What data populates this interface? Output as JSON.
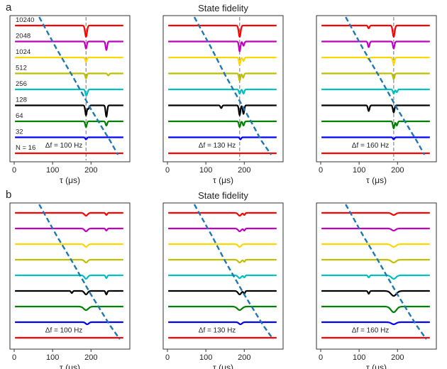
{
  "figure": {
    "panel_labels": [
      "a",
      "b"
    ],
    "row_titles": [
      "State fidelity",
      "State fidelity"
    ]
  },
  "chart_data": [
    {
      "type": "line",
      "panel": "a",
      "subplot": 1,
      "title": "",
      "annotation": "Δf = 100 Hz",
      "xlabel": "τ (μs)",
      "xlim": [
        0,
        290
      ],
      "xticks": [
        0,
        100,
        200
      ],
      "n_labels": [
        "10240",
        "2048",
        "1024",
        "512",
        "256",
        "128",
        "64",
        "32",
        "N = 16"
      ],
      "series": [
        {
          "name": "N=10240",
          "color": "#ff0000",
          "dips": [
            [
              187,
              16,
              2.5
            ]
          ]
        },
        {
          "name": "N=2048",
          "color": "#bf00bf",
          "dips": [
            [
              187,
              10,
              2
            ],
            [
              240,
              12,
              2
            ]
          ]
        },
        {
          "name": "N=1024",
          "color": "#ffd700",
          "dips": [
            [
              187,
              6,
              2
            ]
          ]
        },
        {
          "name": "N=512",
          "color": "#bfbf00",
          "dips": [
            [
              187,
              7,
              2
            ],
            [
              245,
              3,
              2
            ]
          ]
        },
        {
          "name": "N=256",
          "color": "#00bfbf",
          "dips": [
            [
              187,
              7,
              2
            ],
            [
              190,
              4,
              2
            ]
          ]
        },
        {
          "name": "N=128",
          "color": "#000000",
          "dips": [
            [
              187,
              14,
              2
            ],
            [
              240,
              16,
              2
            ],
            [
              193,
              5,
              2
            ]
          ]
        },
        {
          "name": "N=64",
          "color": "#008000",
          "dips": [
            [
              187,
              8,
              2
            ],
            [
              240,
              6,
              2
            ]
          ]
        },
        {
          "name": "N=32",
          "color": "#0000ff",
          "dips": [
            [
              187,
              3,
              2
            ]
          ]
        },
        {
          "name": "N=16",
          "color": "#ff0000",
          "dips": []
        }
      ],
      "vline_x": 187,
      "dashed_curve": {
        "color": "#1f77b4",
        "x": [
          65,
          110,
          150,
          200,
          250,
          270
        ],
        "y": [
          1.0,
          0.77,
          0.58,
          0.33,
          0.1,
          0.0
        ]
      }
    },
    {
      "type": "line",
      "panel": "a",
      "subplot": 2,
      "title": "State fidelity",
      "annotation": "Δf = 130 Hz",
      "xlabel": "τ (μs)",
      "xlim": [
        0,
        290
      ],
      "xticks": [
        0,
        100,
        200
      ],
      "series": [
        {
          "name": "N=10240",
          "color": "#ff0000",
          "dips": [
            [
              188,
              16,
              2.5
            ]
          ]
        },
        {
          "name": "N=2048",
          "color": "#bf00bf",
          "dips": [
            [
              188,
              14,
              2
            ],
            [
              198,
              6,
              2
            ]
          ]
        },
        {
          "name": "N=1024",
          "color": "#ffd700",
          "dips": [
            [
              188,
              10,
              2
            ],
            [
              198,
              5,
              2
            ]
          ]
        },
        {
          "name": "N=512",
          "color": "#bfbf00",
          "dips": [
            [
              188,
              10,
              2
            ],
            [
              197,
              6,
              2
            ]
          ]
        },
        {
          "name": "N=256",
          "color": "#00bfbf",
          "dips": [
            [
              188,
              6,
              2
            ],
            [
              198,
              6,
              2
            ]
          ]
        },
        {
          "name": "N=128",
          "color": "#000000",
          "dips": [
            [
              188,
              14,
              2
            ],
            [
              198,
              12,
              2
            ],
            [
              140,
              4,
              2
            ]
          ]
        },
        {
          "name": "N=64",
          "color": "#008000",
          "dips": [
            [
              188,
              8,
              2
            ],
            [
              198,
              6,
              2
            ]
          ]
        },
        {
          "name": "N=32",
          "color": "#0000ff",
          "dips": [
            [
              190,
              3,
              2
            ]
          ]
        },
        {
          "name": "N=16",
          "color": "#ff0000",
          "dips": []
        }
      ],
      "vline_x": 188,
      "dashed_curve": {
        "color": "#1f77b4",
        "x": [
          70,
          115,
          150,
          200,
          245,
          270
        ],
        "y": [
          1.0,
          0.77,
          0.58,
          0.33,
          0.1,
          0.0
        ]
      }
    },
    {
      "type": "line",
      "panel": "a",
      "subplot": 3,
      "title": "",
      "annotation": "Δf = 160 Hz",
      "xlabel": "τ (μs)",
      "xlim": [
        0,
        290
      ],
      "xticks": [
        0,
        100,
        200
      ],
      "series": [
        {
          "name": "N=10240",
          "color": "#ff0000",
          "dips": [
            [
              190,
              16,
              2.5
            ],
            [
              125,
              4,
              2
            ]
          ]
        },
        {
          "name": "N=2048",
          "color": "#bf00bf",
          "dips": [
            [
              190,
              10,
              2
            ],
            [
              125,
              8,
              2
            ]
          ]
        },
        {
          "name": "N=1024",
          "color": "#ffd700",
          "dips": [
            [
              190,
              10,
              2
            ],
            [
              125,
              3,
              2
            ]
          ]
        },
        {
          "name": "N=512",
          "color": "#bfbf00",
          "dips": [
            [
              190,
              8,
              2
            ]
          ]
        },
        {
          "name": "N=256",
          "color": "#00bfbf",
          "dips": [
            [
              190,
              6,
              2
            ],
            [
              198,
              4,
              2
            ]
          ]
        },
        {
          "name": "N=128",
          "color": "#000000",
          "dips": [
            [
              190,
              10,
              2
            ],
            [
              125,
              8,
              2
            ]
          ]
        },
        {
          "name": "N=64",
          "color": "#008000",
          "dips": [
            [
              190,
              10,
              2
            ],
            [
              198,
              6,
              2
            ]
          ]
        },
        {
          "name": "N=32",
          "color": "#0000ff",
          "dips": [
            [
              190,
              3,
              2
            ]
          ]
        },
        {
          "name": "N=16",
          "color": "#ff0000",
          "dips": []
        }
      ],
      "vline_x": 190,
      "dashed_curve": {
        "color": "#1f77b4",
        "x": [
          65,
          110,
          150,
          200,
          250,
          270
        ],
        "y": [
          1.0,
          0.77,
          0.58,
          0.33,
          0.1,
          0.0
        ]
      }
    },
    {
      "type": "line",
      "panel": "b",
      "subplot": 1,
      "title": "",
      "annotation": "Δf = 100 Hz",
      "xlabel": "τ (μs)",
      "xlim": [
        0,
        290
      ],
      "xticks": [
        0,
        100,
        200
      ],
      "series": [
        {
          "name": "N=10240",
          "color": "#ff0000",
          "dips": [
            [
              187,
              4,
              4
            ],
            [
              240,
              3,
              2
            ]
          ]
        },
        {
          "name": "N=2048",
          "color": "#bf00bf",
          "dips": [
            [
              187,
              4,
              4
            ],
            [
              240,
              3,
              2
            ]
          ]
        },
        {
          "name": "N=1024",
          "color": "#ffd700",
          "dips": [
            [
              187,
              4,
              4
            ]
          ]
        },
        {
          "name": "N=512",
          "color": "#bfbf00",
          "dips": [
            [
              187,
              4,
              4
            ]
          ]
        },
        {
          "name": "N=256",
          "color": "#00bfbf",
          "dips": [
            [
              187,
              5,
              4
            ],
            [
              240,
              4,
              2
            ]
          ]
        },
        {
          "name": "N=128",
          "color": "#000000",
          "dips": [
            [
              187,
              5,
              4
            ],
            [
              240,
              5,
              2
            ],
            [
              150,
              3,
              2
            ]
          ]
        },
        {
          "name": "N=64",
          "color": "#008000",
          "dips": [
            [
              187,
              5,
              6
            ]
          ]
        },
        {
          "name": "N=32",
          "color": "#0000ff",
          "dips": [
            [
              190,
              3,
              4
            ]
          ]
        },
        {
          "name": "N=16",
          "color": "#ff0000",
          "dips": []
        }
      ],
      "dashed_curve": {
        "color": "#1f77b4",
        "x": [
          65,
          110,
          150,
          200,
          250,
          275
        ],
        "y": [
          1.0,
          0.77,
          0.58,
          0.33,
          0.1,
          0.0
        ]
      }
    },
    {
      "type": "line",
      "panel": "b",
      "subplot": 2,
      "title": "State fidelity",
      "annotation": "Δf = 130 Hz",
      "xlabel": "τ (μs)",
      "xlim": [
        0,
        290
      ],
      "xticks": [
        0,
        100,
        200
      ],
      "series": [
        {
          "name": "N=10240",
          "color": "#ff0000",
          "dips": [
            [
              188,
              4,
              4
            ],
            [
              200,
              3,
              2
            ]
          ]
        },
        {
          "name": "N=2048",
          "color": "#bf00bf",
          "dips": [
            [
              188,
              4,
              4
            ],
            [
              200,
              3,
              2
            ]
          ]
        },
        {
          "name": "N=1024",
          "color": "#ffd700",
          "dips": [
            [
              188,
              4,
              4
            ]
          ]
        },
        {
          "name": "N=512",
          "color": "#bfbf00",
          "dips": [
            [
              188,
              4,
              4
            ],
            [
              200,
              3,
              2
            ]
          ]
        },
        {
          "name": "N=256",
          "color": "#00bfbf",
          "dips": [
            [
              188,
              4,
              4
            ],
            [
              200,
              3,
              2
            ]
          ]
        },
        {
          "name": "N=128",
          "color": "#000000",
          "dips": [
            [
              188,
              5,
              4
            ],
            [
              200,
              4,
              2
            ]
          ]
        },
        {
          "name": "N=64",
          "color": "#008000",
          "dips": [
            [
              188,
              5,
              6
            ]
          ]
        },
        {
          "name": "N=32",
          "color": "#0000ff",
          "dips": [
            [
              190,
              3,
              4
            ]
          ]
        },
        {
          "name": "N=16",
          "color": "#ff0000",
          "dips": []
        }
      ],
      "dashed_curve": {
        "color": "#1f77b4",
        "x": [
          70,
          115,
          150,
          200,
          250,
          275
        ],
        "y": [
          1.0,
          0.77,
          0.58,
          0.33,
          0.1,
          0.0
        ]
      }
    },
    {
      "type": "line",
      "panel": "b",
      "subplot": 3,
      "title": "",
      "annotation": "Δf = 160 Hz",
      "xlabel": "τ (μs)",
      "xlim": [
        0,
        290
      ],
      "xticks": [
        0,
        100,
        200
      ],
      "series": [
        {
          "name": "N=10240",
          "color": "#ff0000",
          "dips": [
            [
              190,
              3,
              5
            ]
          ]
        },
        {
          "name": "N=2048",
          "color": "#bf00bf",
          "dips": [
            [
              190,
              3,
              5
            ]
          ]
        },
        {
          "name": "N=1024",
          "color": "#ffd700",
          "dips": [
            [
              190,
              4,
              6
            ]
          ]
        },
        {
          "name": "N=512",
          "color": "#bfbf00",
          "dips": [
            [
              190,
              4,
              6
            ]
          ]
        },
        {
          "name": "N=256",
          "color": "#00bfbf",
          "dips": [
            [
              190,
              5,
              6
            ],
            [
              125,
              3,
              2
            ]
          ]
        },
        {
          "name": "N=128",
          "color": "#000000",
          "dips": [
            [
              190,
              7,
              7
            ],
            [
              125,
              4,
              2
            ]
          ]
        },
        {
          "name": "N=64",
          "color": "#008000",
          "dips": [
            [
              190,
              8,
              7
            ]
          ]
        },
        {
          "name": "N=32",
          "color": "#0000ff",
          "dips": [
            [
              190,
              3,
              6
            ]
          ]
        },
        {
          "name": "N=16",
          "color": "#ff0000",
          "dips": []
        }
      ],
      "dashed_curve": {
        "color": "#1f77b4",
        "x": [
          65,
          110,
          150,
          200,
          250,
          275
        ],
        "y": [
          1.0,
          0.77,
          0.58,
          0.33,
          0.1,
          0.0
        ]
      }
    }
  ]
}
